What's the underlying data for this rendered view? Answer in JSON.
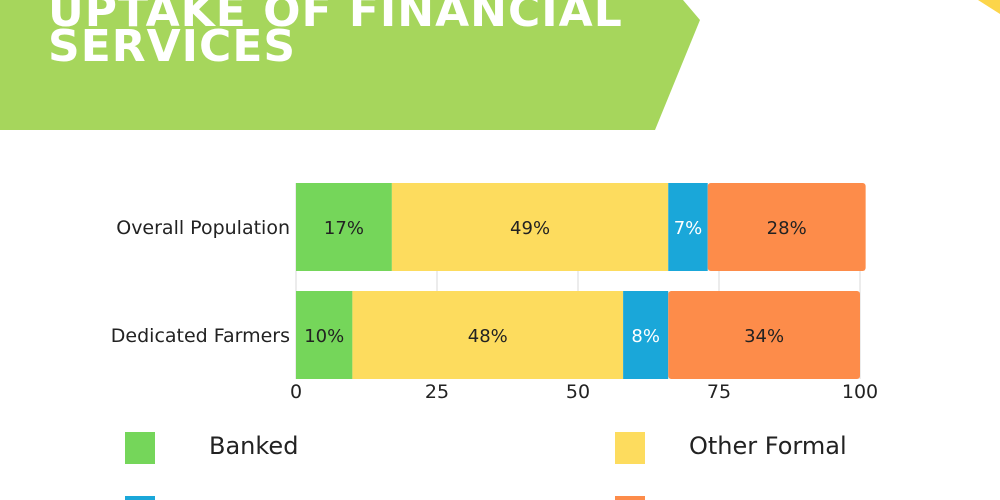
{
  "header": {
    "title_line1": "UPTAKE OF FINANCIAL",
    "title_line2": "SERVICES"
  },
  "colors": {
    "banner": "#a6d65c",
    "corner_accent": "#fcd54a",
    "banked": "#75d65a",
    "other_formal": "#fddc5e",
    "cyan_segment": "#1aa7d9",
    "orange_segment": "#fd8c4a"
  },
  "chart_data": {
    "type": "bar",
    "orientation": "horizontal",
    "stacked": true,
    "categories": [
      "Overall Population",
      "Dedicated Farmers"
    ],
    "series": [
      {
        "name": "Banked",
        "values": [
          17,
          10
        ],
        "labels": [
          "17%",
          "10%"
        ],
        "color": "#75d65a"
      },
      {
        "name": "Other Formal",
        "values": [
          49,
          48
        ],
        "labels": [
          "49%",
          "48%"
        ],
        "color": "#fddc5e"
      },
      {
        "name": "",
        "values": [
          7,
          8
        ],
        "labels": [
          "7%",
          "8%"
        ],
        "color": "#1aa7d9"
      },
      {
        "name": "",
        "values": [
          28,
          34
        ],
        "labels": [
          "28%",
          "34%"
        ],
        "color": "#fd8c4a"
      }
    ],
    "xlim": [
      0,
      100
    ],
    "xticks": [
      "0",
      "25",
      "50",
      "75",
      "100"
    ],
    "grid": true
  },
  "legend": {
    "items": [
      {
        "label": "Banked",
        "color": "#75d65a"
      },
      {
        "label": "Other Formal",
        "color": "#fddc5e"
      }
    ]
  }
}
